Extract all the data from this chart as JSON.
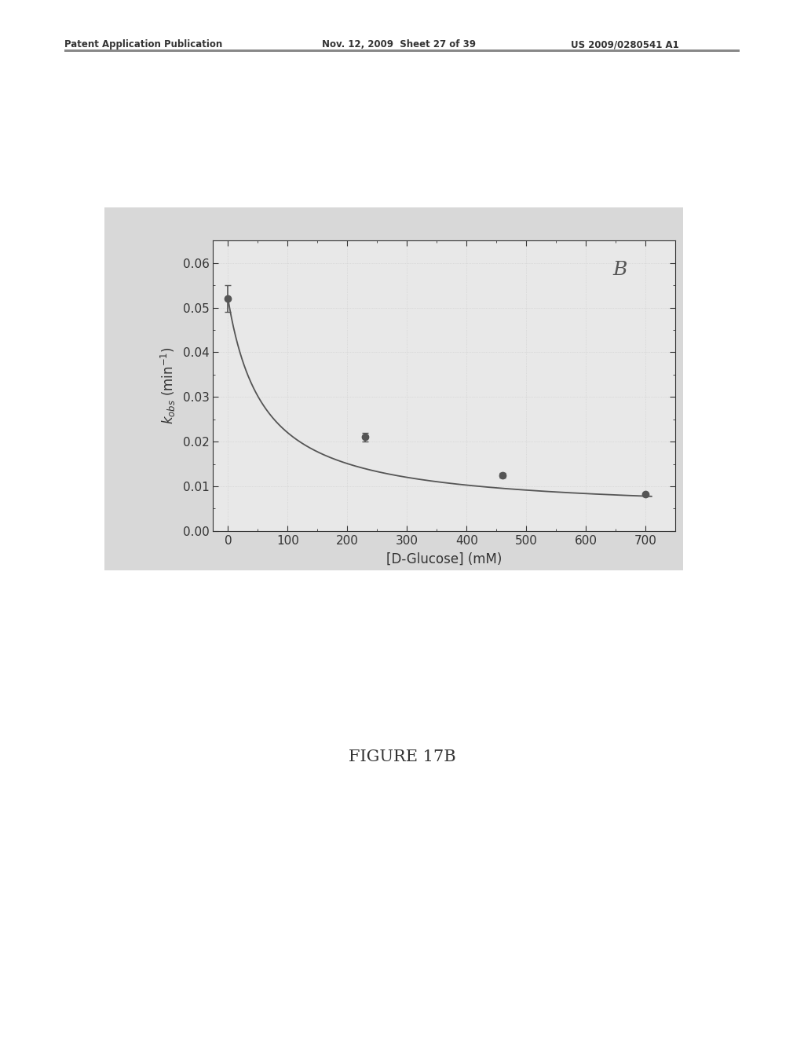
{
  "title": "B",
  "xlabel": "[D-Glucose] (mM)",
  "ylabel_italic": "k",
  "ylabel_rest": "obs (min⁻¹)",
  "xlim": [
    -25,
    750
  ],
  "ylim": [
    0.0,
    0.065
  ],
  "xticks": [
    0,
    100,
    200,
    300,
    400,
    500,
    600,
    700
  ],
  "yticks": [
    0.0,
    0.01,
    0.02,
    0.03,
    0.04,
    0.05,
    0.06
  ],
  "data_x": [
    0,
    230,
    460,
    700
  ],
  "data_y": [
    0.052,
    0.021,
    0.0125,
    0.0082
  ],
  "data_yerr": [
    0.003,
    0.001,
    0.0005,
    0.0003
  ],
  "marker_color": "#555555",
  "curve_color": "#555555",
  "page_bg": "#ffffff",
  "plot_bg": "#e8e8e8",
  "outer_box_bg": "#d8d8d8",
  "fit_params": {
    "a": 0.052,
    "b": 0.004,
    "c": 60
  },
  "header_left": "Patent Application Publication",
  "header_mid": "Nov. 12, 2009  Sheet 27 of 39",
  "header_right": "US 2009/0280541 A1",
  "caption": "FIGURE 17B"
}
